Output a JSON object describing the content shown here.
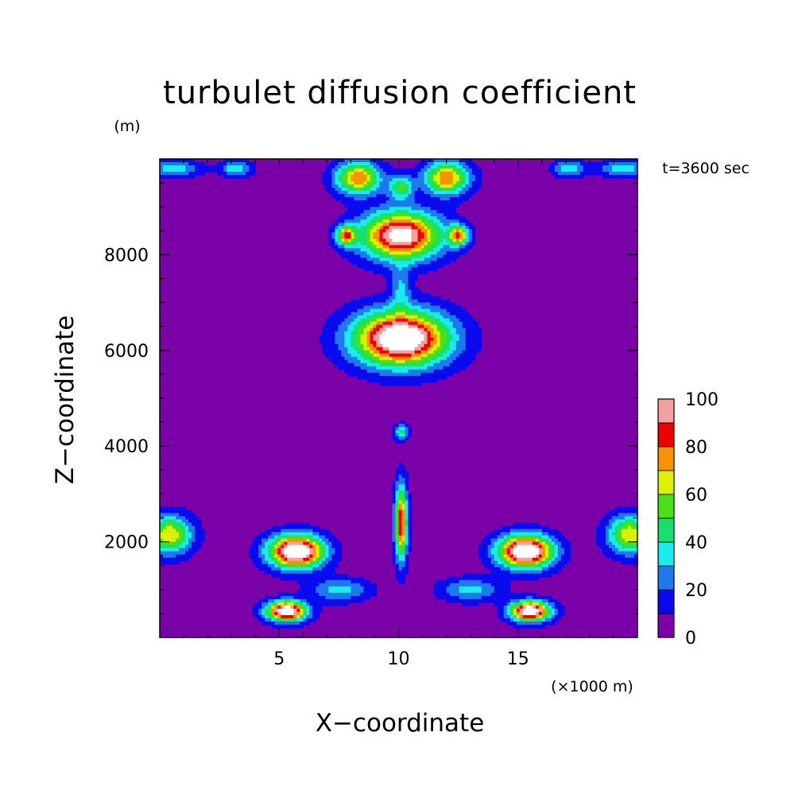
{
  "chart_data": {
    "type": "heatmap",
    "title": "turbulet diffusion coefficient",
    "xlabel": "X−coordinate",
    "ylabel": "Z−coordinate",
    "xunit": "(×1000 m)",
    "yunit": "(m)",
    "annotation": "t=3600 sec",
    "xlim": [
      0,
      20
    ],
    "ylim": [
      0,
      10000
    ],
    "xticks": [
      5,
      10,
      15
    ],
    "xtick_labels": [
      "5",
      "10",
      "15"
    ],
    "yticks": [
      2000,
      4000,
      6000,
      8000
    ],
    "ytick_labels": [
      "2000",
      "4000",
      "6000",
      "8000"
    ],
    "colorbar": {
      "levels": [
        0,
        10,
        20,
        30,
        40,
        50,
        60,
        70,
        80,
        90,
        100
      ],
      "tick_labels": [
        "0",
        "20",
        "40",
        "60",
        "80",
        "100"
      ],
      "colors": [
        "#7a00a8",
        "#0a0aee",
        "#1e78ee",
        "#18ecec",
        "#17e06e",
        "#49e017",
        "#dcf100",
        "#f79300",
        "#ee0000",
        "#f5a0a0"
      ]
    },
    "background_value": 5,
    "features": [
      {
        "x": 10.1,
        "z": 6250,
        "peak": 120,
        "rx": 1.9,
        "rz": 550
      },
      {
        "x": 5.7,
        "z": 1800,
        "peak": 120,
        "rx": 1.1,
        "rz": 330
      },
      {
        "x": 15.3,
        "z": 1800,
        "peak": 120,
        "rx": 1.1,
        "rz": 330
      },
      {
        "x": 5.3,
        "z": 550,
        "peak": 115,
        "rx": 0.8,
        "rz": 200
      },
      {
        "x": 15.5,
        "z": 550,
        "peak": 115,
        "rx": 0.8,
        "rz": 200
      },
      {
        "x": 10.1,
        "z": 8400,
        "peak": 105,
        "rx": 1.6,
        "rz": 480
      },
      {
        "x": 10.1,
        "z": 2400,
        "peak": 85,
        "rx": 0.25,
        "rz": 750
      },
      {
        "x": 10.1,
        "z": 4300,
        "peak": 40,
        "rx": 0.3,
        "rz": 150
      },
      {
        "x": 10.1,
        "z": 7300,
        "peak": 25,
        "rx": 0.4,
        "rz": 500
      },
      {
        "x": 7.8,
        "z": 8400,
        "peak": 70,
        "rx": 0.4,
        "rz": 200
      },
      {
        "x": 12.5,
        "z": 8400,
        "peak": 70,
        "rx": 0.4,
        "rz": 200
      },
      {
        "x": 8.3,
        "z": 9600,
        "peak": 75,
        "rx": 0.9,
        "rz": 330
      },
      {
        "x": 12.0,
        "z": 9600,
        "peak": 75,
        "rx": 0.9,
        "rz": 330
      },
      {
        "x": 10.1,
        "z": 9400,
        "peak": 45,
        "rx": 0.5,
        "rz": 250
      },
      {
        "x": 0.4,
        "z": 2150,
        "peak": 65,
        "rx": 0.9,
        "rz": 380
      },
      {
        "x": 19.7,
        "z": 2150,
        "peak": 65,
        "rx": 0.9,
        "rz": 380
      },
      {
        "x": 0.6,
        "z": 9800,
        "peak": 30,
        "rx": 1.1,
        "rz": 150
      },
      {
        "x": 19.4,
        "z": 9800,
        "peak": 30,
        "rx": 1.1,
        "rz": 150
      },
      {
        "x": 3.2,
        "z": 9800,
        "peak": 35,
        "rx": 0.6,
        "rz": 160
      },
      {
        "x": 17.1,
        "z": 9800,
        "peak": 35,
        "rx": 0.6,
        "rz": 160
      },
      {
        "x": 7.5,
        "z": 1000,
        "peak": 30,
        "rx": 1.2,
        "rz": 230
      },
      {
        "x": 13.0,
        "z": 1000,
        "peak": 30,
        "rx": 1.2,
        "rz": 230
      }
    ]
  }
}
